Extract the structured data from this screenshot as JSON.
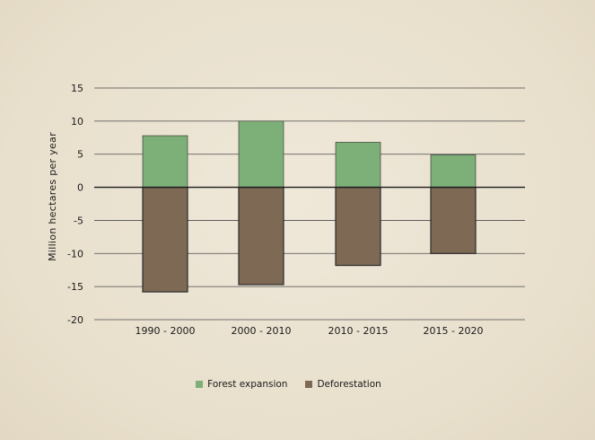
{
  "chart_data": {
    "type": "bar",
    "stacked": true,
    "categories": [
      "1990 - 2000",
      "2000 - 2010",
      "2010 - 2015",
      "2015 - 2020"
    ],
    "series": [
      {
        "name": "Forest expansion",
        "values": [
          7.8,
          10.0,
          6.8,
          4.9
        ],
        "color": "#7daf78"
      },
      {
        "name": "Deforestation",
        "values": [
          -15.8,
          -14.7,
          -11.8,
          -10.0
        ],
        "color": "#7e6a54"
      }
    ],
    "ylabel": "Million hectares per year",
    "ylim": [
      -20,
      15
    ],
    "yticks": [
      15,
      10,
      5,
      0,
      -5,
      -10,
      -15,
      -20
    ],
    "grid": true,
    "legend_position": "bottom"
  },
  "legend": {
    "items": [
      {
        "label": "Forest expansion",
        "color": "#7daf78"
      },
      {
        "label": "Deforestation",
        "color": "#7e6a54"
      }
    ]
  }
}
